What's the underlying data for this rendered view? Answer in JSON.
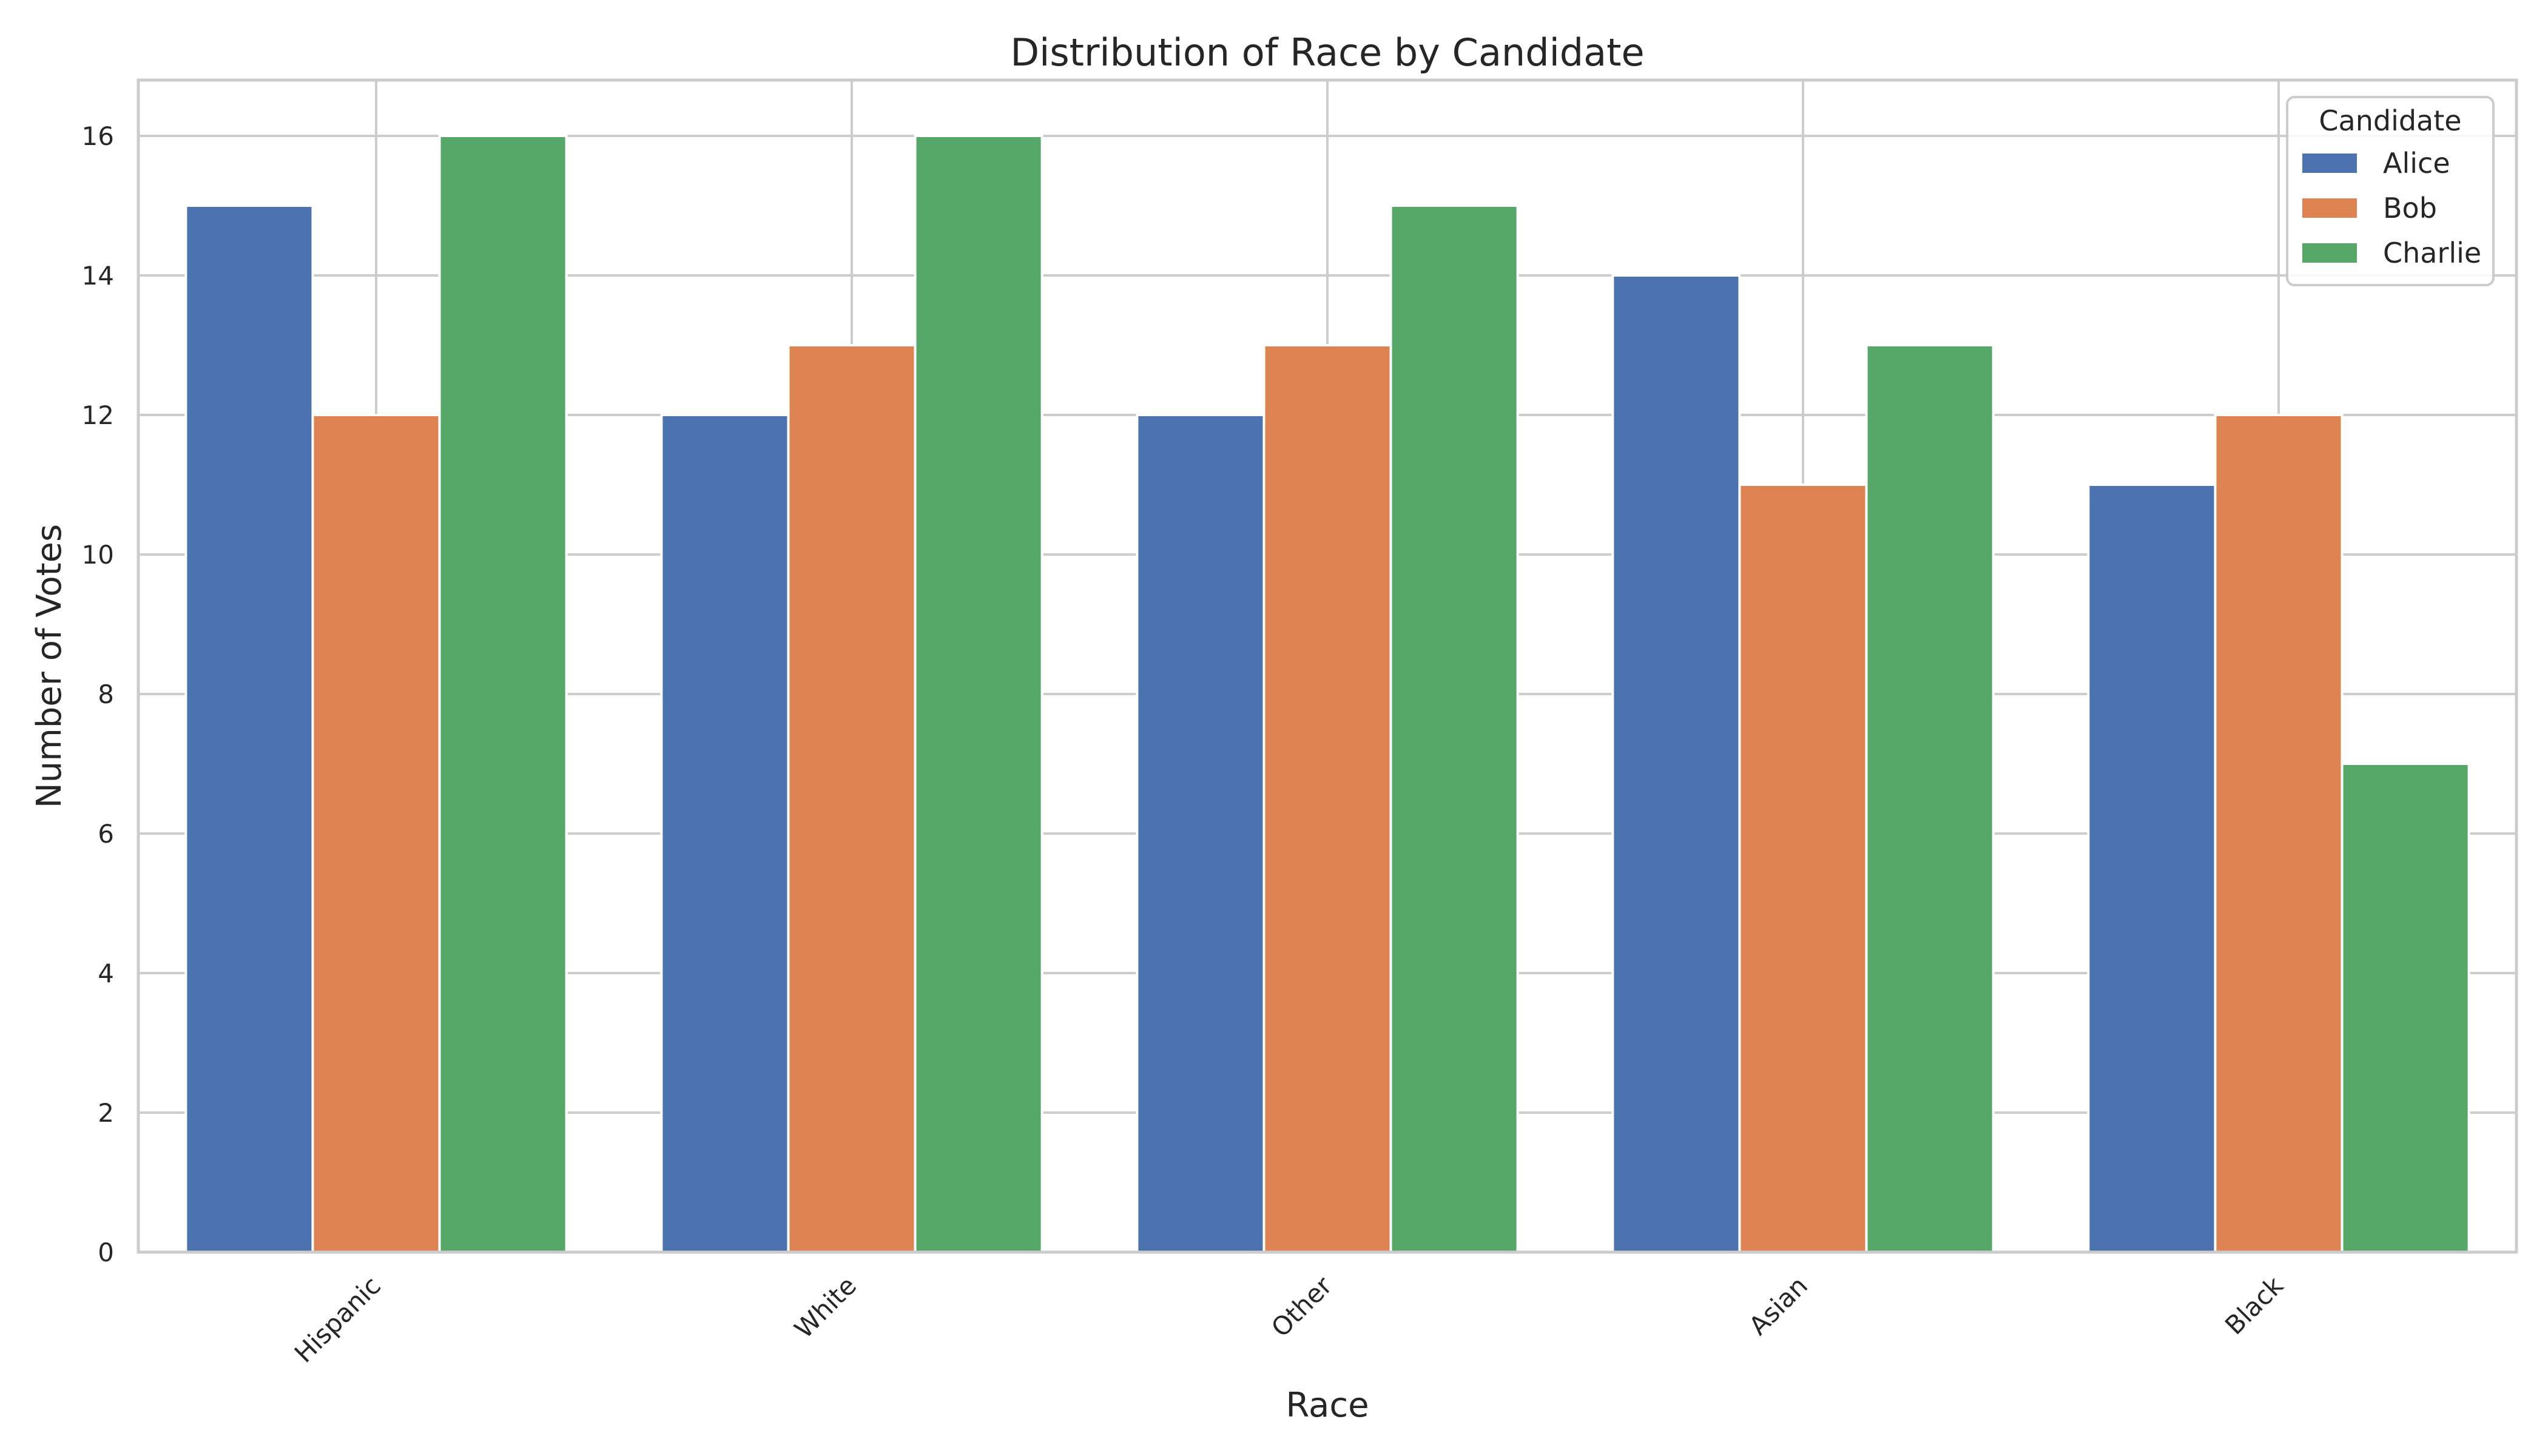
{
  "chart_data": {
    "type": "bar",
    "title": "Distribution of Race by Candidate",
    "xlabel": "Race",
    "ylabel": "Number of Votes",
    "categories": [
      "Hispanic",
      "White",
      "Other",
      "Asian",
      "Black"
    ],
    "series": [
      {
        "name": "Alice",
        "color": "#4c72b0",
        "values": [
          15,
          12,
          12,
          14,
          11
        ]
      },
      {
        "name": "Bob",
        "color": "#dd8452",
        "values": [
          12,
          13,
          13,
          11,
          12
        ]
      },
      {
        "name": "Charlie",
        "color": "#55a868",
        "values": [
          16,
          16,
          15,
          13,
          7
        ]
      }
    ],
    "ylim": [
      0,
      16.8
    ],
    "yticks": [
      0,
      2,
      4,
      6,
      8,
      10,
      12,
      14,
      16
    ],
    "grid": true,
    "legend": {
      "title": "Candidate",
      "placement": "top-right"
    }
  }
}
